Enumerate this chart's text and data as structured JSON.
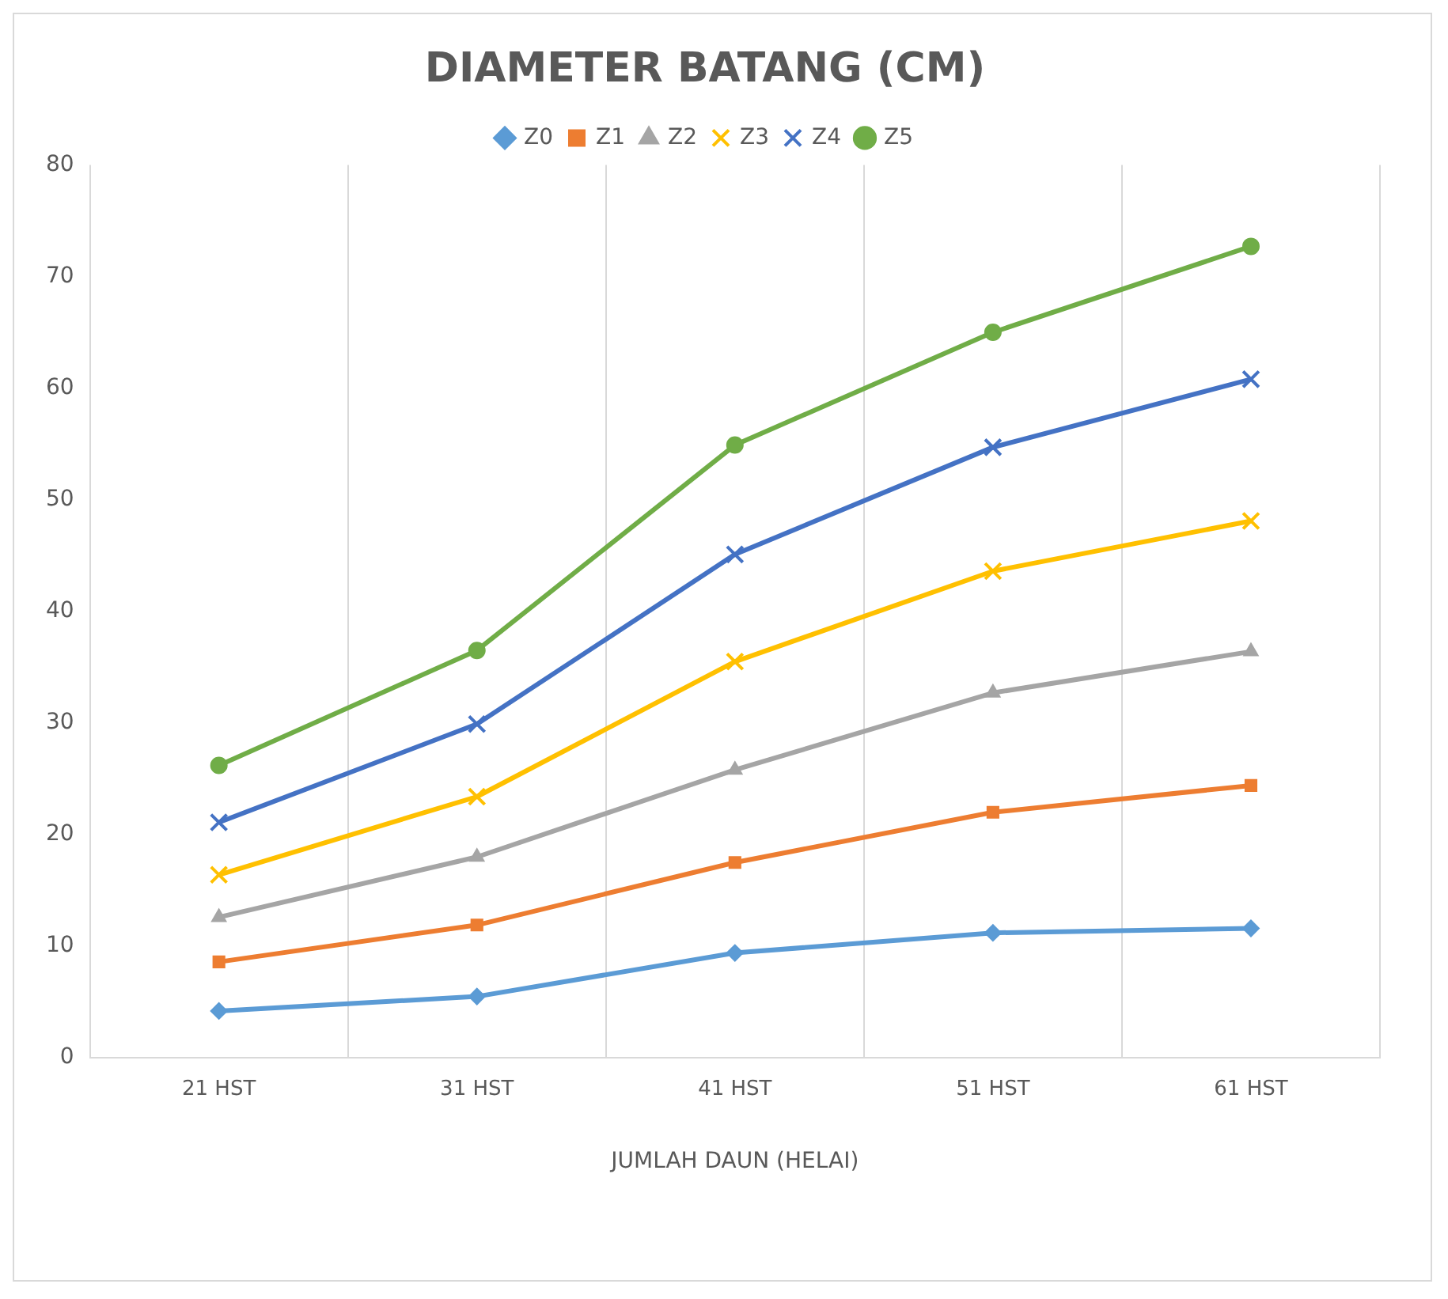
{
  "chart_data": {
    "type": "line",
    "title": "DIAMETER BATANG (CM)",
    "xlabel": "JUMLAH DAUN (HELAI)",
    "categories": [
      "21 HST",
      "31 HST",
      "41 HST",
      "51 HST",
      "61 HST"
    ],
    "series": [
      {
        "name": "Z0",
        "color": "#5b9bd5",
        "marker": "diamond",
        "values": [
          4.2,
          5.5,
          9.4,
          11.2,
          11.6
        ]
      },
      {
        "name": "Z1",
        "color": "#ed7d31",
        "marker": "square",
        "values": [
          8.6,
          11.9,
          17.5,
          22.0,
          24.4
        ]
      },
      {
        "name": "Z2",
        "color": "#a5a5a5",
        "marker": "triangle",
        "values": [
          12.6,
          18.0,
          25.8,
          32.7,
          36.4
        ]
      },
      {
        "name": "Z3",
        "color": "#ffc000",
        "marker": "cross",
        "values": [
          16.4,
          23.4,
          35.5,
          43.6,
          48.1
        ]
      },
      {
        "name": "Z4",
        "color": "#4472c4",
        "marker": "cross",
        "values": [
          21.1,
          29.9,
          45.1,
          54.7,
          60.8
        ]
      },
      {
        "name": "Z5",
        "color": "#70ad47",
        "marker": "circle",
        "values": [
          26.2,
          36.5,
          54.9,
          65.0,
          72.7
        ]
      }
    ],
    "ylim": [
      0,
      80
    ],
    "yticks": [
      0,
      10,
      20,
      30,
      40,
      50,
      60,
      70,
      80
    ],
    "grid": "x",
    "legend": "top",
    "line_style": "solid"
  }
}
